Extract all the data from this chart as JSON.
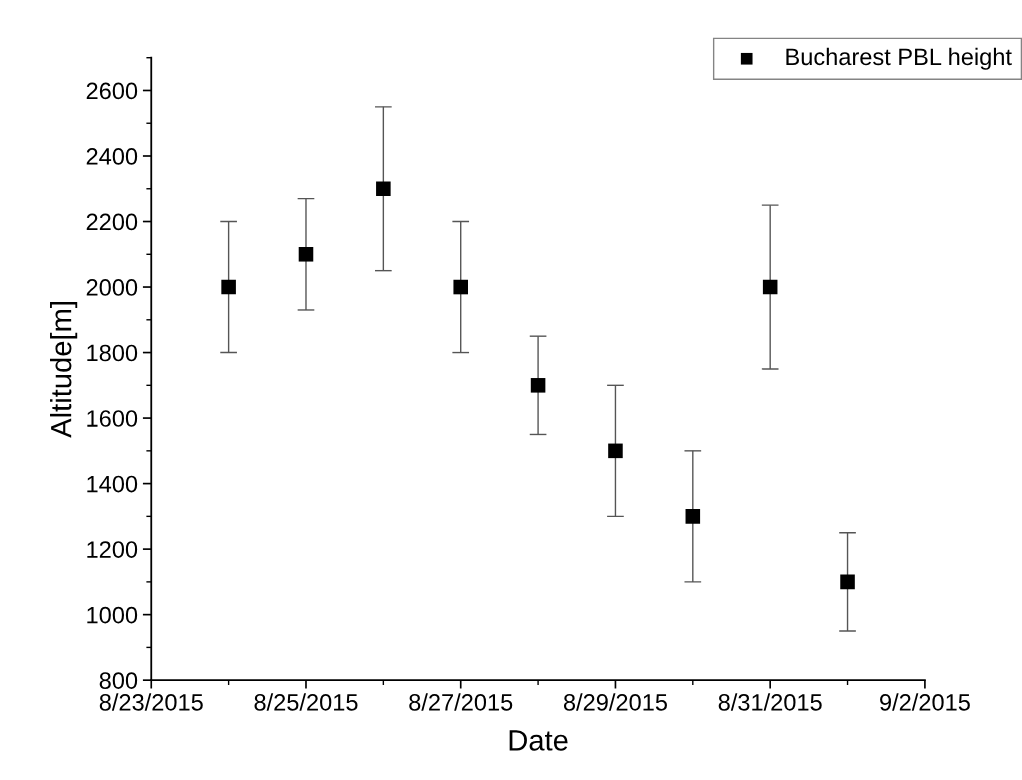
{
  "chart_data": {
    "type": "scatter",
    "xlabel": "Date",
    "ylabel": "Altitude[m]",
    "x": [
      "2015-08-24",
      "2015-08-25",
      "2015-08-26",
      "2015-08-27",
      "2015-08-28",
      "2015-08-29",
      "2015-08-30",
      "2015-08-31",
      "2015-09-01"
    ],
    "series": [
      {
        "name": "Bucharest PBL height",
        "color": "#000000",
        "values": [
          2000,
          2100,
          2300,
          2000,
          1700,
          1500,
          1300,
          2000,
          1100
        ],
        "errors": [
          [
            1800,
            2200
          ],
          [
            1930,
            2270
          ],
          [
            2050,
            2550
          ],
          [
            1800,
            2200
          ],
          [
            1550,
            1850
          ],
          [
            1300,
            1700
          ],
          [
            1100,
            1500
          ],
          [
            1750,
            2250
          ],
          [
            950,
            1250
          ]
        ]
      }
    ],
    "xlim": [
      "2015-08-23",
      "2015-09-02"
    ],
    "xticks": [
      {
        "value": "2015-08-23",
        "label": "8/23/2015"
      },
      {
        "value": "2015-08-25",
        "label": "8/25/2015"
      },
      {
        "value": "2015-08-27",
        "label": "8/27/2015"
      },
      {
        "value": "2015-08-29",
        "label": "8/29/2015"
      },
      {
        "value": "2015-08-31",
        "label": "8/31/2015"
      },
      {
        "value": "2015-09-02",
        "label": "9/2/2015"
      }
    ],
    "ylim": [
      800,
      2700
    ],
    "yticks": [
      800,
      1000,
      1200,
      1400,
      1600,
      1800,
      2000,
      2200,
      2400,
      2600
    ],
    "marker": "square",
    "grid": false,
    "legend": "top right"
  }
}
